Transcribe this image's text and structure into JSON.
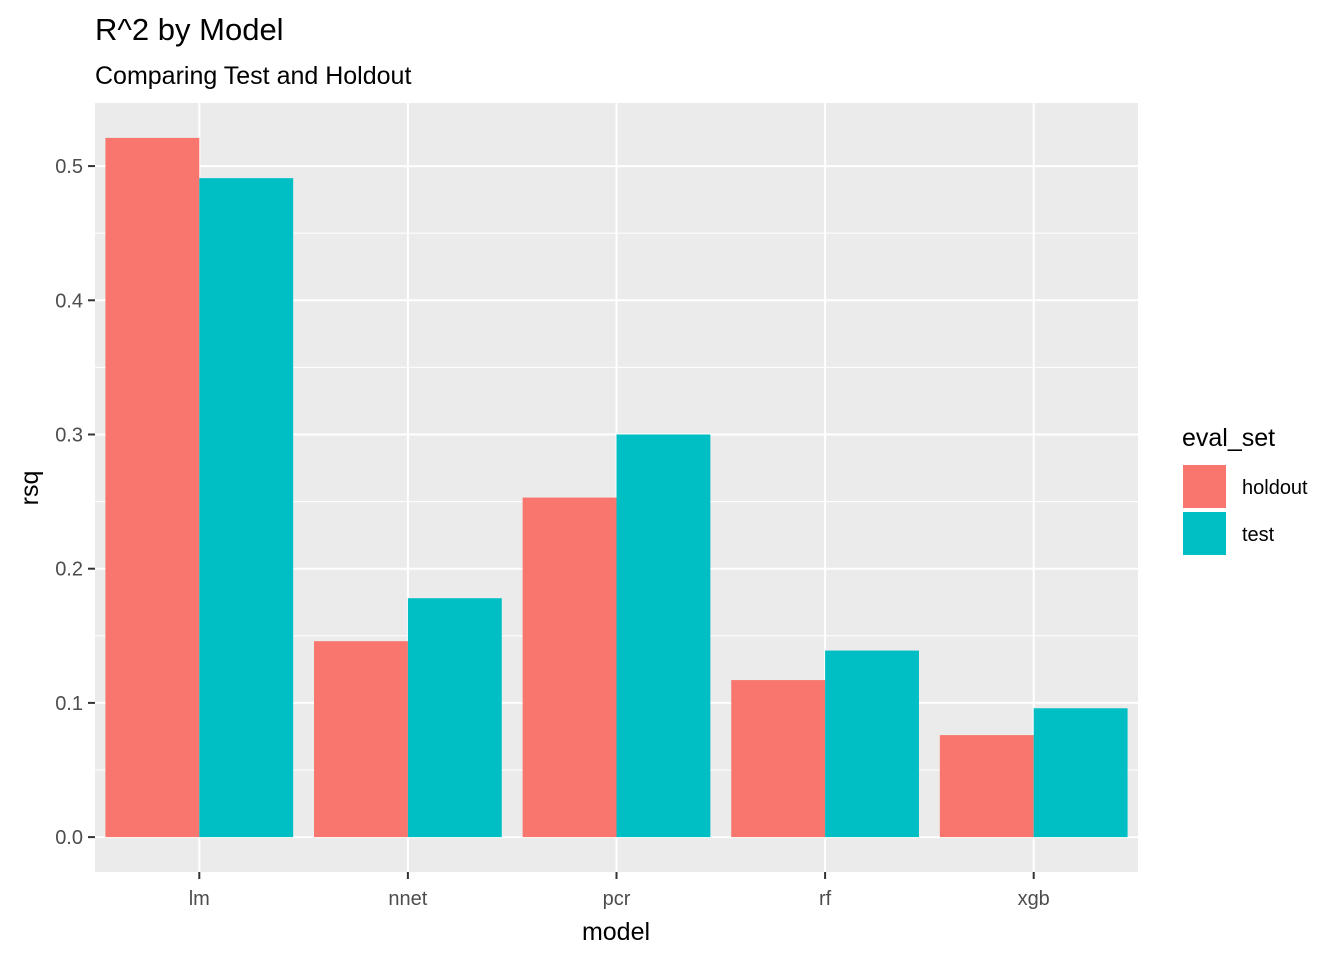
{
  "chart_data": {
    "type": "bar",
    "title": "R^2 by Model",
    "subtitle": "Comparing Test and Holdout",
    "xlabel": "model",
    "ylabel": "rsq",
    "categories": [
      "lm",
      "nnet",
      "pcr",
      "rf",
      "xgb"
    ],
    "series": [
      {
        "name": "holdout",
        "color": "#F8766D",
        "values": [
          0.521,
          0.146,
          0.253,
          0.117,
          0.076
        ]
      },
      {
        "name": "test",
        "color": "#00BFC4",
        "values": [
          0.491,
          0.178,
          0.3,
          0.139,
          0.096
        ]
      }
    ],
    "ylim": [
      -0.026,
      0.547
    ],
    "yticks": [
      0.0,
      0.1,
      0.2,
      0.3,
      0.4,
      0.5
    ],
    "ytick_labels": [
      "0.0",
      "0.1",
      "0.2",
      "0.3",
      "0.4",
      "0.5"
    ],
    "legend": {
      "title": "eval_set",
      "position": "right"
    },
    "grid": true,
    "panel_color": "#EBEBEB"
  }
}
